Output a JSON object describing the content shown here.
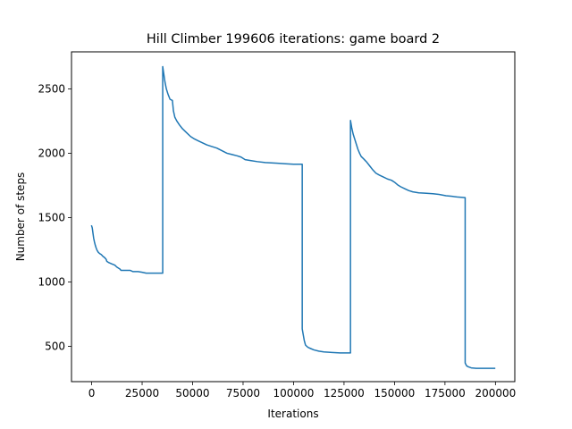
{
  "chart_data": {
    "type": "line",
    "title": "Hill Climber 199606 iterations: game board 2",
    "xlabel": "Iterations",
    "ylabel": "Number of steps",
    "xlim": [
      -9980,
      209586
    ],
    "ylim": [
      225,
      2788
    ],
    "grid": false,
    "legend": "none",
    "xticks": [
      0,
      25000,
      50000,
      75000,
      100000,
      125000,
      150000,
      175000,
      200000
    ],
    "xtick_labels": [
      "0",
      "25000",
      "50000",
      "75000",
      "100000",
      "125000",
      "150000",
      "175000",
      "200000"
    ],
    "yticks": [
      500,
      1000,
      1500,
      2000,
      2500
    ],
    "ytick_labels": [
      "500",
      "1000",
      "1500",
      "2000",
      "2500"
    ],
    "series": [
      {
        "name": "steps",
        "color": "#1f77b4",
        "points": [
          [
            0,
            1435
          ],
          [
            300,
            1420
          ],
          [
            600,
            1385
          ],
          [
            1000,
            1340
          ],
          [
            1400,
            1310
          ],
          [
            1800,
            1285
          ],
          [
            2200,
            1265
          ],
          [
            2700,
            1245
          ],
          [
            3300,
            1230
          ],
          [
            4000,
            1220
          ],
          [
            4800,
            1212
          ],
          [
            5500,
            1200
          ],
          [
            6500,
            1188
          ],
          [
            7200,
            1175
          ],
          [
            7500,
            1160
          ],
          [
            8500,
            1150
          ],
          [
            10000,
            1140
          ],
          [
            11500,
            1130
          ],
          [
            12500,
            1115
          ],
          [
            14000,
            1100
          ],
          [
            14500,
            1090
          ],
          [
            19000,
            1090
          ],
          [
            20500,
            1080
          ],
          [
            23000,
            1080
          ],
          [
            25000,
            1075
          ],
          [
            27000,
            1068
          ],
          [
            35200,
            1068
          ],
          [
            35200,
            2673
          ],
          [
            35700,
            2620
          ],
          [
            36300,
            2555
          ],
          [
            37000,
            2500
          ],
          [
            37800,
            2460
          ],
          [
            38800,
            2420
          ],
          [
            40000,
            2410
          ],
          [
            40500,
            2330
          ],
          [
            41200,
            2280
          ],
          [
            42200,
            2250
          ],
          [
            43500,
            2220
          ],
          [
            45000,
            2190
          ],
          [
            47000,
            2160
          ],
          [
            49000,
            2130
          ],
          [
            51000,
            2110
          ],
          [
            53000,
            2095
          ],
          [
            55000,
            2080
          ],
          [
            57000,
            2065
          ],
          [
            59000,
            2055
          ],
          [
            62000,
            2040
          ],
          [
            64500,
            2020
          ],
          [
            67000,
            2000
          ],
          [
            69500,
            1990
          ],
          [
            72000,
            1980
          ],
          [
            74000,
            1970
          ],
          [
            76000,
            1950
          ],
          [
            79000,
            1942
          ],
          [
            82000,
            1935
          ],
          [
            86000,
            1928
          ],
          [
            89000,
            1925
          ],
          [
            92000,
            1922
          ],
          [
            96000,
            1918
          ],
          [
            100000,
            1915
          ],
          [
            104300,
            1915
          ],
          [
            104300,
            635
          ],
          [
            104800,
            590
          ],
          [
            105300,
            545
          ],
          [
            105900,
            510
          ],
          [
            106500,
            500
          ],
          [
            107300,
            490
          ],
          [
            108500,
            482
          ],
          [
            110000,
            472
          ],
          [
            112500,
            462
          ],
          [
            115000,
            456
          ],
          [
            119000,
            452
          ],
          [
            123000,
            448
          ],
          [
            128200,
            448
          ],
          [
            128200,
            2255
          ],
          [
            128800,
            2200
          ],
          [
            129500,
            2150
          ],
          [
            130300,
            2110
          ],
          [
            131100,
            2070
          ],
          [
            131900,
            2030
          ],
          [
            132700,
            2000
          ],
          [
            133500,
            1975
          ],
          [
            134800,
            1955
          ],
          [
            136300,
            1930
          ],
          [
            137800,
            1900
          ],
          [
            139300,
            1870
          ],
          [
            140800,
            1845
          ],
          [
            142500,
            1830
          ],
          [
            144500,
            1815
          ],
          [
            146500,
            1800
          ],
          [
            148500,
            1790
          ],
          [
            150000,
            1775
          ],
          [
            151500,
            1755
          ],
          [
            153000,
            1740
          ],
          [
            155000,
            1725
          ],
          [
            157000,
            1710
          ],
          [
            159000,
            1700
          ],
          [
            162000,
            1692
          ],
          [
            165000,
            1690
          ],
          [
            169000,
            1685
          ],
          [
            172000,
            1680
          ],
          [
            175500,
            1670
          ],
          [
            178500,
            1665
          ],
          [
            181000,
            1660
          ],
          [
            185000,
            1655
          ],
          [
            185000,
            370
          ],
          [
            185700,
            348
          ],
          [
            186600,
            340
          ],
          [
            188000,
            332
          ],
          [
            190500,
            328
          ],
          [
            199606,
            328
          ]
        ]
      }
    ]
  }
}
